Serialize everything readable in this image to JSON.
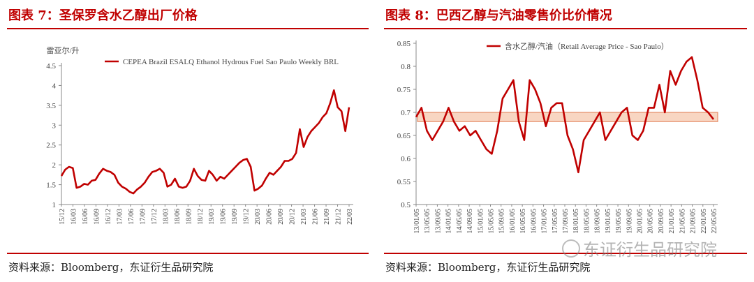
{
  "page": {
    "watermark": "东证衍生品研究院"
  },
  "left": {
    "figure_title": "图表 7：圣保罗含水乙醇出厂价格",
    "source": "资料来源：Bloomberg，东证衍生品研究院"
  },
  "right": {
    "figure_title": "图表 8：巴西乙醇与汽油零售价比价情况",
    "source": "资料来源：Bloomberg，东证衍生品研究院"
  },
  "colors": {
    "accent": "#c00000",
    "band_fill": "#f8d6c2",
    "band_stroke": "#e07a50",
    "axis": "#888888"
  },
  "chart_data": [
    {
      "type": "line",
      "title": "",
      "unit_label": "雷亚尔/升",
      "xlabel": "",
      "ylabel": "",
      "ylim": [
        1,
        4.5
      ],
      "yticks": [
        "1",
        "1.5",
        "2",
        "2.5",
        "3",
        "3.5",
        "4",
        "4.5"
      ],
      "xticks": [
        "15/12",
        "16/03",
        "16/06",
        "16/09",
        "16/12",
        "17/03",
        "17/06",
        "17/09",
        "17/12",
        "18/03",
        "18/06",
        "18/09",
        "18/12",
        "19/03",
        "19/06",
        "19/09",
        "19/12",
        "20/03",
        "20/06",
        "20/09",
        "20/12",
        "21/03",
        "21/06",
        "21/09",
        "21/12",
        "22/03"
      ],
      "grid": false,
      "legend_position": "top",
      "series": [
        {
          "name": "CEPEA Brazil ESALQ Ethanol Hydrous Fuel Sao Paulo Weekly BRL",
          "x": [
            "15/12",
            "16/01",
            "16/02",
            "16/03",
            "16/04",
            "16/05",
            "16/06",
            "16/07",
            "16/08",
            "16/09",
            "16/10",
            "16/11",
            "16/12",
            "17/01",
            "17/02",
            "17/03",
            "17/04",
            "17/05",
            "17/06",
            "17/07",
            "17/08",
            "17/09",
            "17/10",
            "17/11",
            "17/12",
            "18/01",
            "18/02",
            "18/03",
            "18/04",
            "18/05",
            "18/06",
            "18/07",
            "18/08",
            "18/09",
            "18/10",
            "18/11",
            "18/12",
            "19/01",
            "19/02",
            "19/03",
            "19/04",
            "19/05",
            "19/06",
            "19/07",
            "19/08",
            "19/09",
            "19/10",
            "19/11",
            "19/12",
            "20/01",
            "20/02",
            "20/03",
            "20/04",
            "20/05",
            "20/06",
            "20/07",
            "20/08",
            "20/09",
            "20/10",
            "20/11",
            "20/12",
            "21/01",
            "21/02",
            "21/03",
            "21/04",
            "21/05",
            "21/06",
            "21/07",
            "21/08",
            "21/09",
            "21/10",
            "21/11",
            "21/12",
            "22/01",
            "22/02",
            "22/03",
            "22/04"
          ],
          "values": [
            1.72,
            1.88,
            1.95,
            1.92,
            1.42,
            1.45,
            1.52,
            1.5,
            1.6,
            1.62,
            1.78,
            1.9,
            1.85,
            1.82,
            1.75,
            1.55,
            1.45,
            1.4,
            1.32,
            1.28,
            1.38,
            1.45,
            1.55,
            1.7,
            1.82,
            1.85,
            1.9,
            1.8,
            1.45,
            1.5,
            1.65,
            1.45,
            1.42,
            1.45,
            1.6,
            1.9,
            1.72,
            1.62,
            1.6,
            1.85,
            1.75,
            1.6,
            1.7,
            1.65,
            1.75,
            1.85,
            1.95,
            2.05,
            2.12,
            2.15,
            1.95,
            1.35,
            1.4,
            1.48,
            1.65,
            1.8,
            1.75,
            1.85,
            1.95,
            2.1,
            2.1,
            2.15,
            2.3,
            2.9,
            2.45,
            2.7,
            2.85,
            2.95,
            3.05,
            3.2,
            3.3,
            3.55,
            3.88,
            3.45,
            3.35,
            2.85,
            3.45
          ]
        }
      ]
    },
    {
      "type": "line",
      "title": "",
      "xlabel": "",
      "ylabel": "",
      "ylim": [
        0.5,
        0.85
      ],
      "yticks": [
        "0.5",
        "0.55",
        "0.6",
        "0.65",
        "0.7",
        "0.75",
        "0.8",
        "0.85"
      ],
      "xticks": [
        "13/01/05",
        "13/05/05",
        "13/09/05",
        "14/01/05",
        "14/05/05",
        "14/09/05",
        "15/01/05",
        "15/05/05",
        "15/09/05",
        "16/01/05",
        "16/05/05",
        "16/09/05",
        "17/01/05",
        "17/05/05",
        "17/09/05",
        "18/01/05",
        "18/05/05",
        "18/09/05",
        "19/01/05",
        "19/05/05",
        "19/09/05",
        "20/01/05",
        "20/05/05",
        "20/09/05",
        "21/01/05",
        "21/05/05",
        "21/09/05",
        "22/01/05",
        "22/05/05"
      ],
      "grid": false,
      "legend_position": "top",
      "band": {
        "ymin": 0.68,
        "ymax": 0.7
      },
      "series": [
        {
          "name": "含水乙醇/汽油（Retail Average Price - Sao Paulo）",
          "x": [
            "13/01",
            "13/03",
            "13/05",
            "13/07",
            "13/09",
            "13/11",
            "14/01",
            "14/03",
            "14/05",
            "14/07",
            "14/09",
            "14/11",
            "15/01",
            "15/03",
            "15/05",
            "15/07",
            "15/09",
            "15/11",
            "16/01",
            "16/03",
            "16/05",
            "16/07",
            "16/09",
            "16/11",
            "17/01",
            "17/03",
            "17/05",
            "17/07",
            "17/09",
            "17/11",
            "18/01",
            "18/03",
            "18/05",
            "18/07",
            "18/09",
            "18/11",
            "19/01",
            "19/03",
            "19/05",
            "19/07",
            "19/09",
            "19/11",
            "20/01",
            "20/03",
            "20/05",
            "20/07",
            "20/09",
            "20/11",
            "21/01",
            "21/03",
            "21/05",
            "21/07",
            "21/09",
            "21/11",
            "22/01",
            "22/03"
          ],
          "values": [
            0.69,
            0.71,
            0.66,
            0.64,
            0.66,
            0.68,
            0.71,
            0.68,
            0.66,
            0.67,
            0.65,
            0.66,
            0.64,
            0.62,
            0.61,
            0.66,
            0.73,
            0.75,
            0.77,
            0.68,
            0.64,
            0.77,
            0.75,
            0.72,
            0.67,
            0.71,
            0.72,
            0.72,
            0.65,
            0.62,
            0.57,
            0.64,
            0.66,
            0.68,
            0.7,
            0.64,
            0.66,
            0.68,
            0.7,
            0.71,
            0.65,
            0.64,
            0.66,
            0.71,
            0.71,
            0.76,
            0.7,
            0.79,
            0.76,
            0.79,
            0.81,
            0.82,
            0.77,
            0.71,
            0.7,
            0.685
          ]
        }
      ]
    }
  ]
}
